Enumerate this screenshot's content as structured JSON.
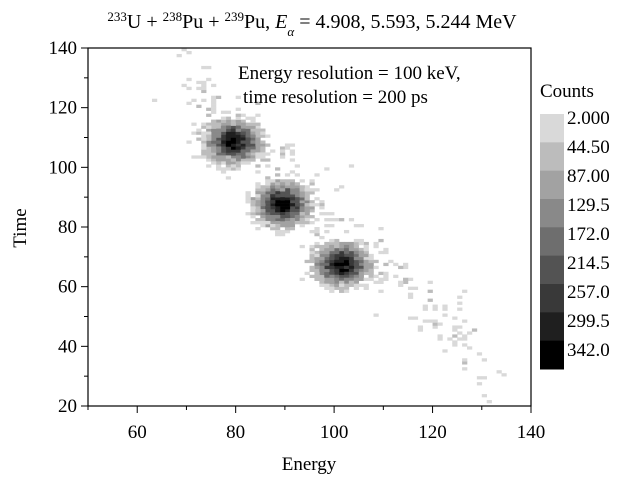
{
  "chart_data": {
    "type": "heatmap",
    "title": {
      "iso1_mass": "233",
      "iso1_sym": "U",
      "iso2_mass": "238",
      "iso2_sym": "Pu",
      "iso3_mass": "239",
      "iso3_sym": "Pu",
      "energy_symbol": "E",
      "energy_subscript": "α",
      "energies": "= 4.908, 5.593, 5.244 MeV"
    },
    "xlabel": "Energy",
    "ylabel": "Time",
    "xlim": [
      50,
      140
    ],
    "ylim": [
      20,
      140
    ],
    "xticks": [
      60,
      80,
      100,
      120,
      140
    ],
    "yticks": [
      20,
      40,
      60,
      80,
      100,
      120,
      140
    ],
    "annotations": [
      "Energy resolution = 100 keV,",
      "time resolution = 200 ps"
    ],
    "colorbar": {
      "title": "Counts",
      "levels": [
        "2.000",
        "44.50",
        "87.00",
        "129.5",
        "172.0",
        "214.5",
        "257.0",
        "299.5",
        "342.0"
      ],
      "colors": [
        "#d9d9d9",
        "#bcbcbc",
        "#a2a2a2",
        "#898989",
        "#6e6e6e",
        "#535353",
        "#393939",
        "#1f1f1f",
        "#000000"
      ]
    },
    "peaks": [
      {
        "energy": 79,
        "time": 108,
        "max_counts": 342
      },
      {
        "energy": 89,
        "time": 87,
        "max_counts": 342
      },
      {
        "energy": 101,
        "time": 67,
        "max_counts": 342
      }
    ]
  }
}
